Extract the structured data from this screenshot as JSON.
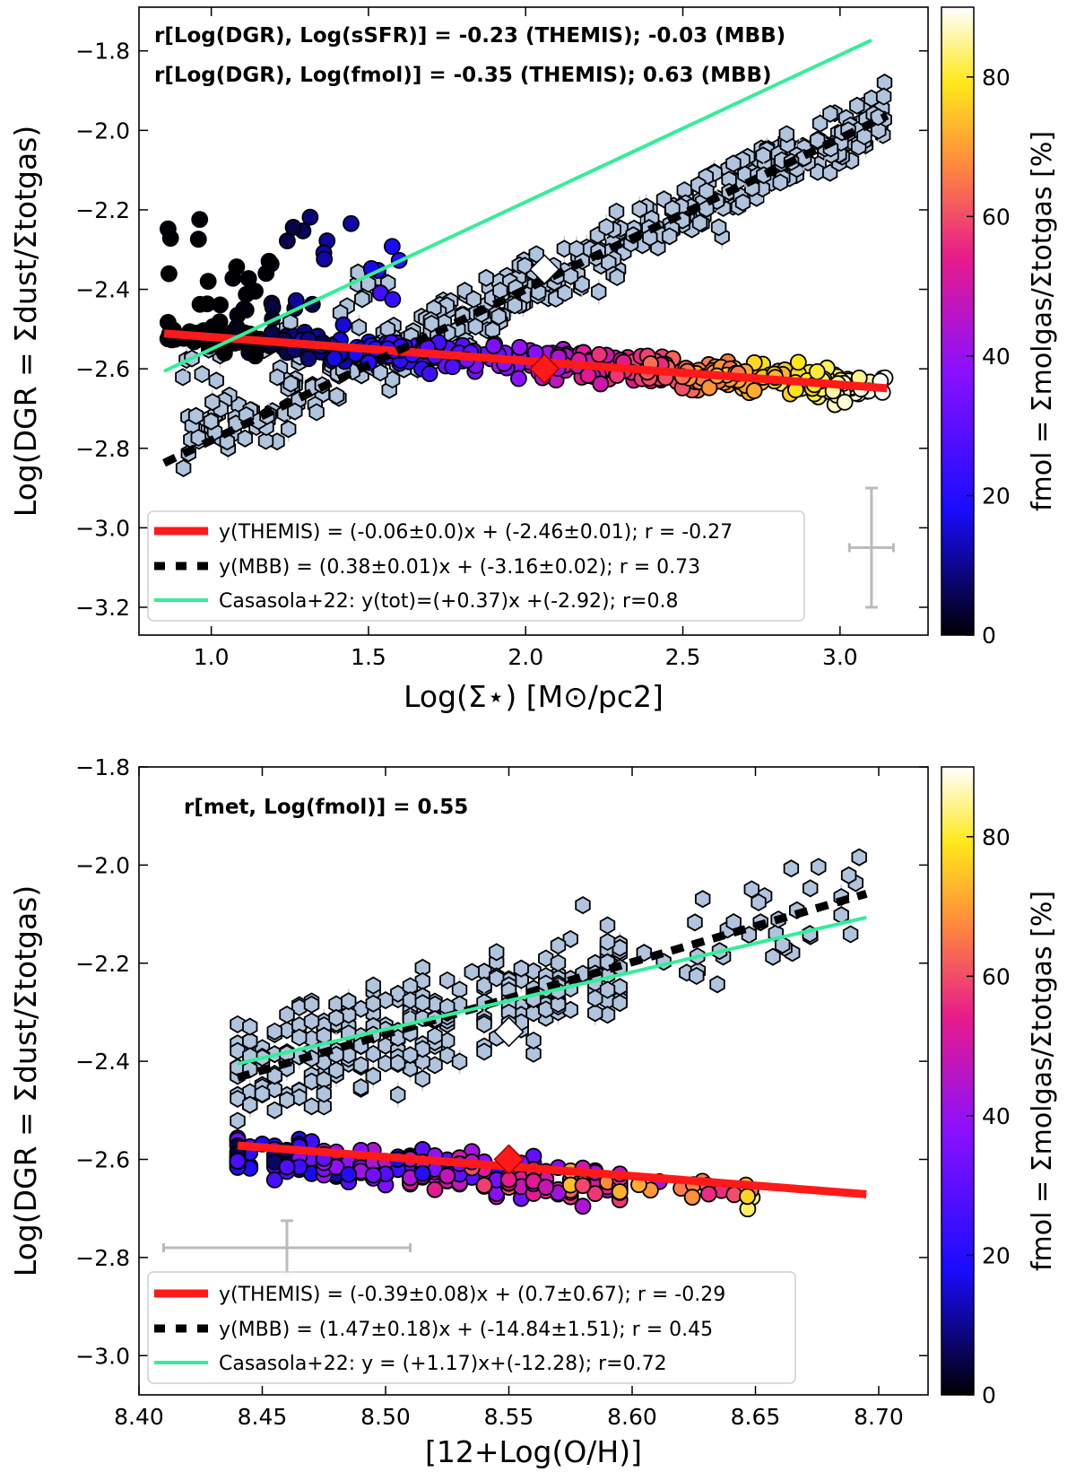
{
  "colors": {
    "themis_fit": "#ff1a1a",
    "mbb_fit": "#000000",
    "casasola": "#33ee99",
    "mbb_points": "#b0c4de",
    "error_bars": "#bbbbbb",
    "colormap": [
      "#000004",
      "#1a0cff",
      "#8a10ff",
      "#e81a8c",
      "#ff8a3c",
      "#ffe81a",
      "#ffffff"
    ]
  },
  "chart_data": [
    {
      "type": "scatter",
      "xlabel": "Log(Σ⋆) [M⊙/pc2]",
      "ylabel": "Log(DGR = Σdust/Σtotgas)",
      "xlim": [
        0.77,
        3.28
      ],
      "ylim": [
        -3.27,
        -1.69
      ],
      "xticks": [
        "1.0",
        "1.5",
        "2.0",
        "2.5",
        "3.0"
      ],
      "yticks": [
        "−1.8",
        "−2.0",
        "−2.2",
        "−2.4",
        "−2.6",
        "−2.8",
        "−3.0",
        "−3.2"
      ],
      "annotations": [
        "r[Log(DGR), Log(sSFR)] = -0.23 (THEMIS); -0.03 (MBB)",
        "r[Log(DGR), Log(fmol)] = -0.35 (THEMIS); 0.63 (MBB)"
      ],
      "colorbar": {
        "label": "fmol = Σmolgas/Σtotgas [%]",
        "range": [
          0,
          90
        ],
        "ticks": [
          "0",
          "20",
          "40",
          "60",
          "80"
        ]
      },
      "legend": {
        "position": "lower-left",
        "entries": [
          {
            "key": "themis",
            "text": "y(THEMIS) = (-0.06±0.0)x + (-2.46±0.01); r = -0.27"
          },
          {
            "key": "mbb",
            "text": "y(MBB) = (0.38±0.01)x + (-3.16±0.02); r = 0.73"
          },
          {
            "key": "casasola",
            "text": "Casasola+22: y(tot)=(+0.37)x +(-2.92); r=0.8"
          }
        ]
      },
      "series": [
        {
          "key": "themis_fit",
          "style": "line",
          "x": [
            0.85,
            3.15
          ],
          "y": [
            -2.511,
            -2.649
          ]
        },
        {
          "key": "mbb_fit",
          "style": "dashed",
          "x": [
            0.85,
            3.15
          ],
          "y": [
            -2.837,
            -1.963
          ]
        },
        {
          "key": "casasola",
          "style": "line",
          "x": [
            0.85,
            3.1
          ],
          "y": [
            -2.606,
            -1.773
          ]
        },
        {
          "key": "mbb_points",
          "marker": "hexagon",
          "x_range": [
            0.9,
            3.15
          ],
          "y_trend": [
            0.38,
            -3.16
          ]
        },
        {
          "key": "themis_points",
          "marker": "circle",
          "color_by": "fmol",
          "x_range": [
            0.85,
            3.15
          ],
          "y_trend": [
            -0.06,
            -2.46
          ]
        }
      ],
      "medians": [
        {
          "series": "MBB",
          "x": 2.06,
          "y": -2.35,
          "marker": "diamond",
          "color": "#ffffff"
        },
        {
          "series": "THEMIS",
          "x": 2.06,
          "y": -2.6,
          "marker": "diamond",
          "color": "#ff1a1a"
        }
      ],
      "error_bar": {
        "x": 3.1,
        "y": -3.05,
        "xerr": 0.07,
        "yerr": 0.15
      }
    },
    {
      "type": "scatter",
      "xlabel": "[12+Log(O/H)]",
      "ylabel": "Log(DGR = Σdust/Σtotgas)",
      "xlim": [
        8.4,
        8.72
      ],
      "ylim": [
        -3.08,
        -1.8
      ],
      "xticks": [
        "8.40",
        "8.45",
        "8.50",
        "8.55",
        "8.60",
        "8.65",
        "8.70"
      ],
      "yticks": [
        "−1.8",
        "−2.0",
        "−2.2",
        "−2.4",
        "−2.6",
        "−2.8",
        "−3.0"
      ],
      "annotations": [
        "r[met, Log(fmol)] = 0.55"
      ],
      "colorbar": {
        "label": "fmol = Σmolgas/Σtotgas [%]",
        "range": [
          0,
          90
        ],
        "ticks": [
          "0",
          "20",
          "40",
          "60",
          "80"
        ]
      },
      "legend": {
        "position": "lower-left",
        "entries": [
          {
            "key": "themis",
            "text": "y(THEMIS) = (-0.39±0.08)x + (0.7±0.67); r = -0.29"
          },
          {
            "key": "mbb",
            "text": "y(MBB) = (1.47±0.18)x + (-14.84±1.51); r = 0.45"
          },
          {
            "key": "casasola",
            "text": "Casasola+22: y = (+1.17)x+(-12.28); r=0.72"
          }
        ]
      },
      "series": [
        {
          "key": "themis_fit",
          "style": "line",
          "x": [
            8.44,
            8.695
          ],
          "y": [
            -2.5716,
            -2.671
          ]
        },
        {
          "key": "mbb_fit",
          "style": "dashed",
          "x": [
            8.44,
            8.695
          ],
          "y": [
            -2.4332,
            -2.0584
          ]
        },
        {
          "key": "casasola",
          "style": "line",
          "x": [
            8.44,
            8.695
          ],
          "y": [
            -2.4052,
            -2.1069
          ]
        },
        {
          "key": "mbb_points",
          "marker": "hexagon",
          "x_range": [
            8.44,
            8.695
          ],
          "y_trend": [
            1.47,
            -14.84
          ]
        },
        {
          "key": "themis_points",
          "marker": "circle",
          "color_by": "fmol",
          "x_range": [
            8.44,
            8.695
          ],
          "y_trend": [
            -0.39,
            0.7
          ]
        }
      ],
      "medians": [
        {
          "series": "MBB",
          "x": 8.55,
          "y": -2.34,
          "marker": "diamond",
          "color": "#ffffff"
        },
        {
          "series": "THEMIS",
          "x": 8.55,
          "y": -2.6,
          "marker": "diamond",
          "color": "#ff1a1a"
        }
      ],
      "error_bar": {
        "x": 8.46,
        "y": -2.78,
        "xerr": 0.05,
        "yerr": 0.055
      }
    }
  ]
}
